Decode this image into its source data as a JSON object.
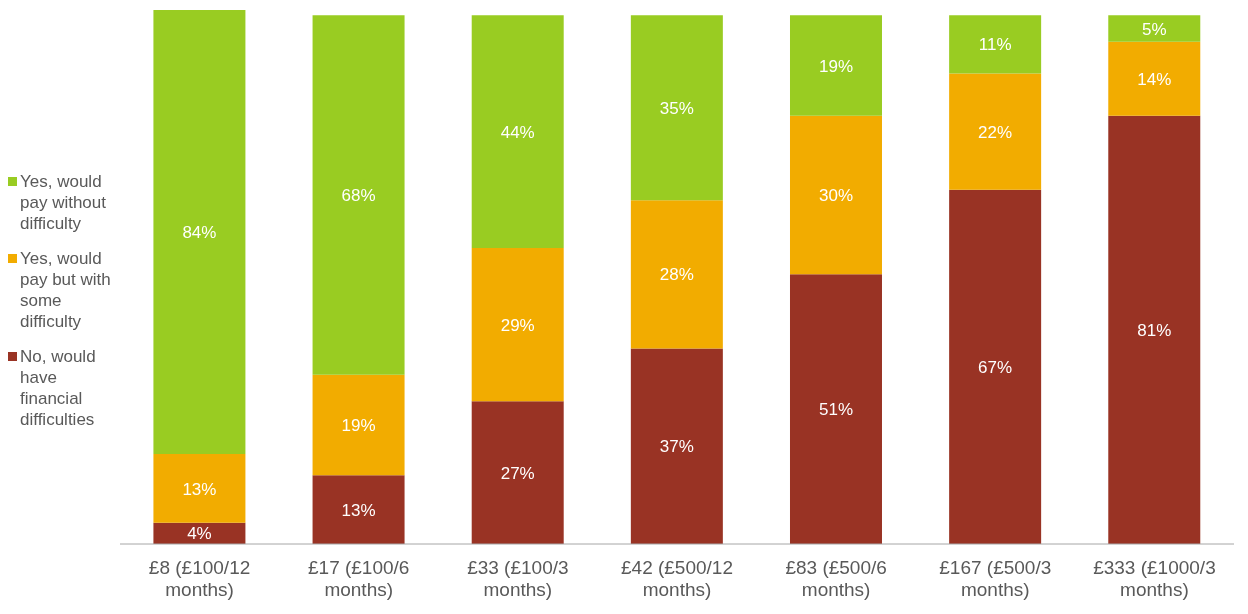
{
  "chart_data": {
    "type": "bar",
    "stacked": true,
    "legend": "left",
    "grid": false,
    "categories": [
      "£8 (£100/12 months)",
      "£17 (£100/6 months)",
      "£33 (£100/3 months)",
      "£42 (£500/12 months)",
      "£83 (£500/6 months)",
      "£167 (£500/3 months)",
      "£333 (£1000/3 months)"
    ],
    "series": [
      {
        "name": "No, would have financial difficulties",
        "color": "#993324",
        "values": [
          4,
          13,
          27,
          37,
          51,
          67,
          81
        ],
        "value_labels": [
          "4%",
          "13%",
          "27%",
          "37%",
          "51%",
          "67%",
          "81%"
        ]
      },
      {
        "name": "Yes, would pay but with some difficulty",
        "color": "#f2ac00",
        "values": [
          13,
          19,
          29,
          28,
          30,
          22,
          14
        ],
        "value_labels": [
          "13%",
          "19%",
          "29%",
          "28%",
          "30%",
          "22%",
          "14%"
        ]
      },
      {
        "name": "Yes, would pay without difficulty",
        "color": "#99cc22",
        "values": [
          84,
          68,
          44,
          35,
          19,
          11,
          5
        ],
        "value_labels": [
          "84%",
          "68%",
          "44%",
          "35%",
          "19%",
          "11%",
          "5%"
        ]
      }
    ]
  }
}
